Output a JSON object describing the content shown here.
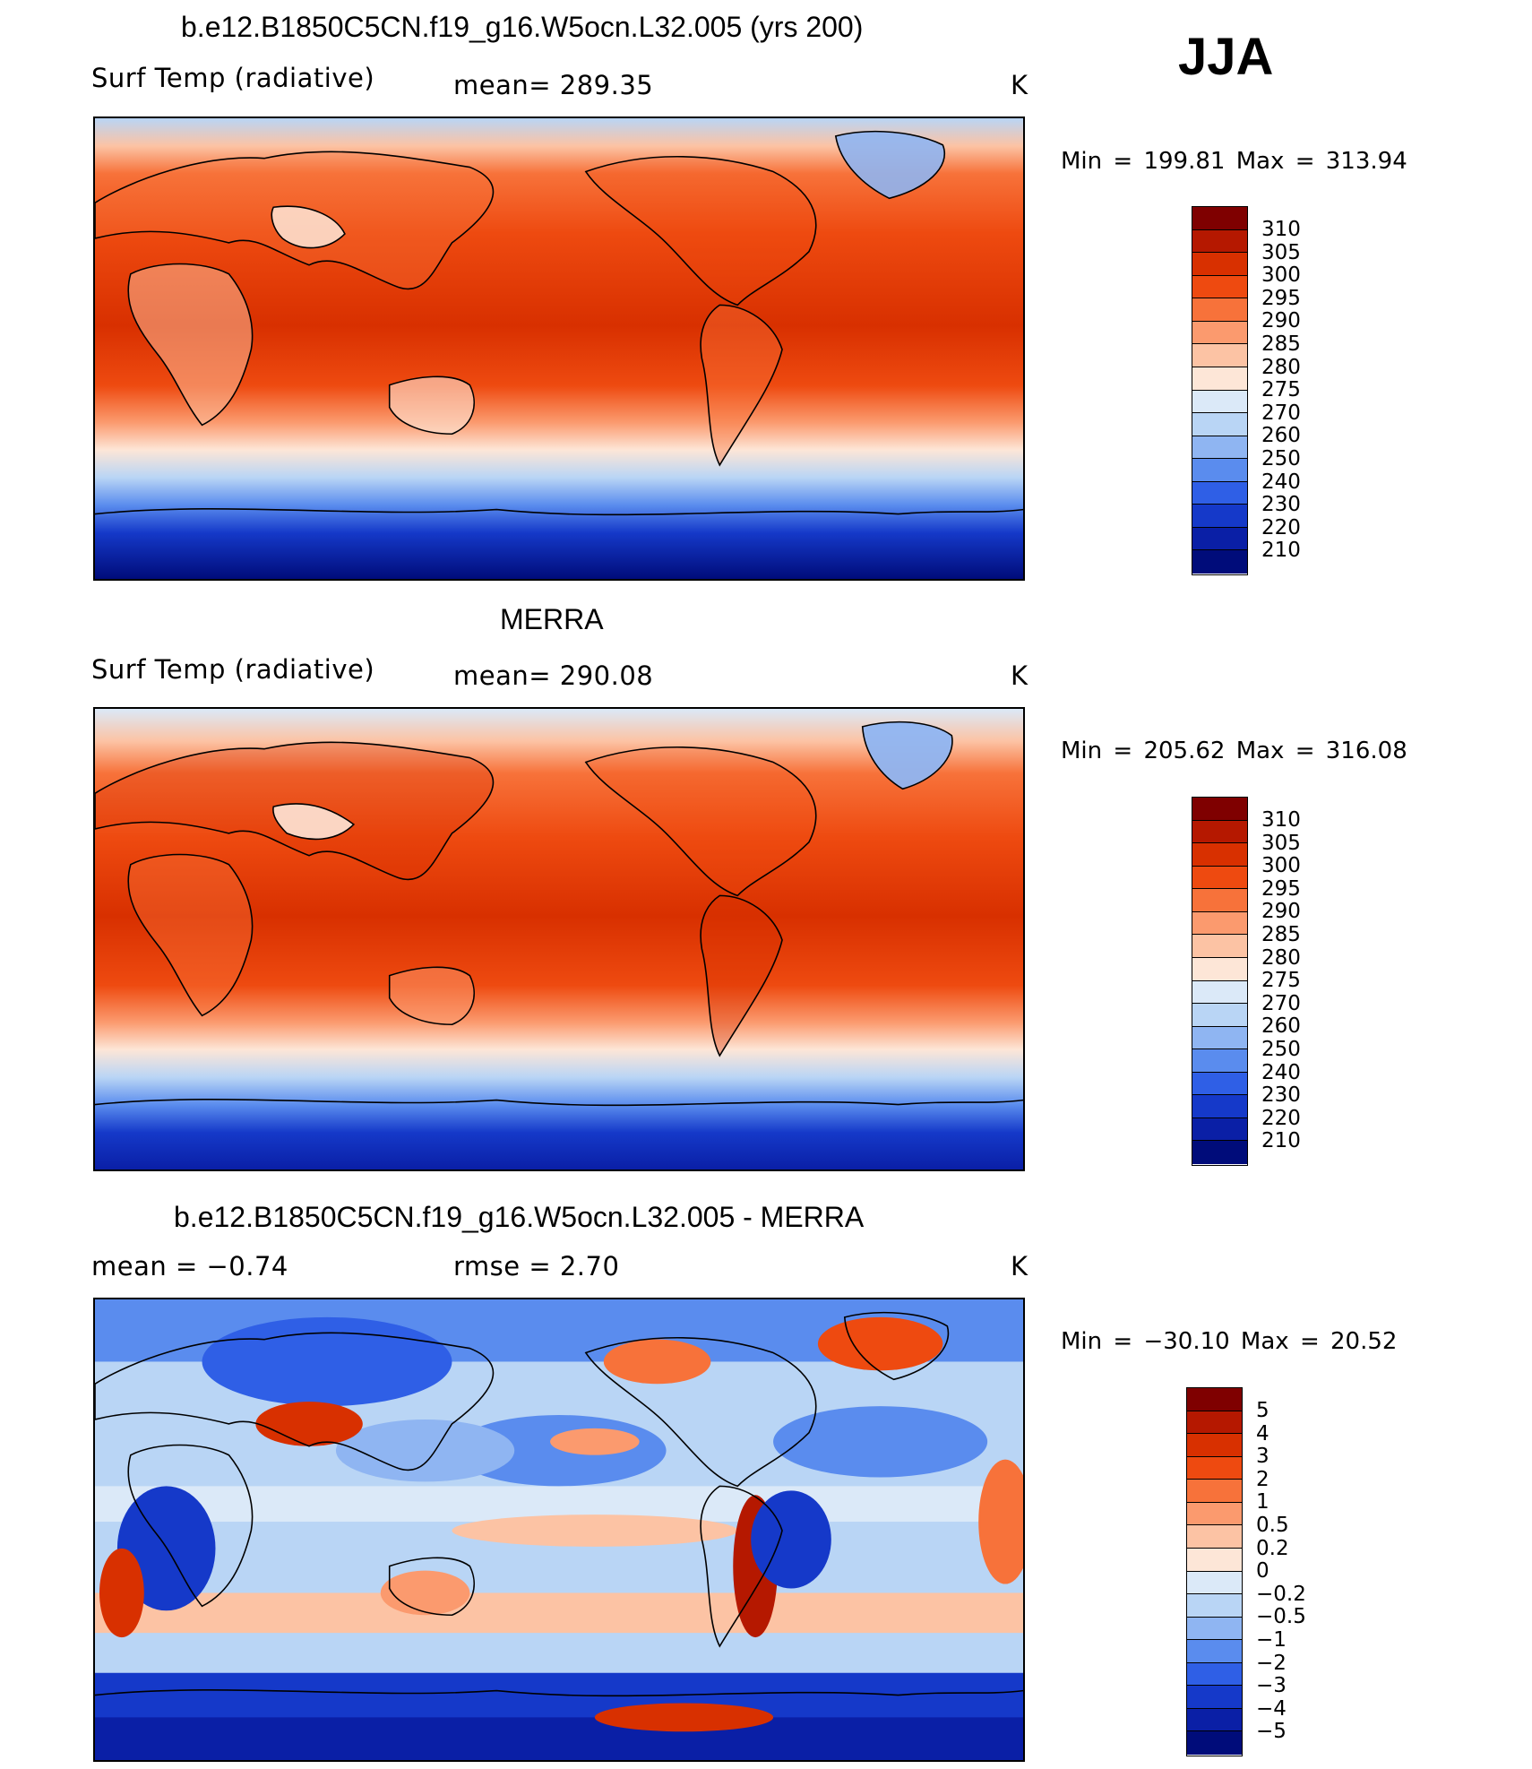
{
  "season": "JJA",
  "units_label": "K",
  "panels": [
    {
      "title": "b.e12.B1850C5CN.f19_g16.W5ocn.L32.005 (yrs 200)",
      "left_label": "Surf Temp (radiative)",
      "center_label": "mean=  289.35",
      "units": "K",
      "minmax": "Min  =  199.81  Max  =  313.94"
    },
    {
      "title": "MERRA",
      "left_label": "Surf Temp (radiative)",
      "center_label": "mean=  290.08",
      "units": "K",
      "minmax": "Min  =  205.62  Max  =  316.08"
    },
    {
      "title": "b.e12.B1850C5CN.f19_g16.W5ocn.L32.005 - MERRA",
      "left_label": "mean  =    −0.74",
      "center_label": "rmse  =     2.70",
      "units": "K",
      "minmax": "Min  =  −30.10  Max  =    20.52"
    }
  ],
  "colorbars": {
    "temperature": {
      "labels": [
        "310",
        "305",
        "300",
        "295",
        "290",
        "285",
        "280",
        "275",
        "270",
        "260",
        "250",
        "240",
        "230",
        "220",
        "210"
      ],
      "colors": [
        "#7f0000",
        "#b51800",
        "#d83000",
        "#ee4a10",
        "#f7723a",
        "#fb9a6e",
        "#fcc3a4",
        "#fde6d7",
        "#dbe9f8",
        "#b9d5f5",
        "#8fb5f2",
        "#5a8cee",
        "#2f5fe6",
        "#1539c9",
        "#0a1fa6",
        "#000c7a"
      ]
    },
    "difference": {
      "labels": [
        "5",
        "4",
        "3",
        "2",
        "1",
        "0.5",
        "0.2",
        "0",
        "−0.2",
        "−0.5",
        "−1",
        "−2",
        "−3",
        "−4",
        "−5"
      ],
      "colors": [
        "#7f0000",
        "#b51800",
        "#d83000",
        "#ee4a10",
        "#f7723a",
        "#fb9a6e",
        "#fcc3a4",
        "#fde6d7",
        "#dbe9f8",
        "#b9d5f5",
        "#8fb5f2",
        "#5a8cee",
        "#2f5fe6",
        "#1539c9",
        "#0a1fa6",
        "#000c7a"
      ]
    }
  }
}
